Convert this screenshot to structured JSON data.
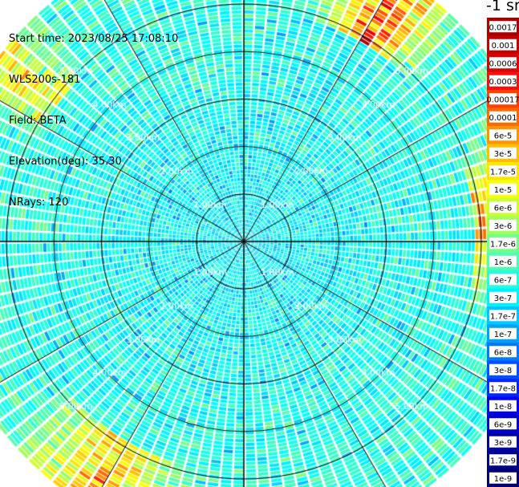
{
  "header": {
    "start_time": "Start time: 2023/08/25 17:08:10",
    "instrument": "WLS200s-181",
    "field": "Field: BETA",
    "elevation": "Elevation(deg): 35.30",
    "nrays": "NRays: 120"
  },
  "colorbar": {
    "unit": "-1 sr",
    "labels": [
      "0.0017",
      "0.001",
      "0.0006",
      "0.0003",
      "0.00017",
      "0.0001",
      "6e-5",
      "3e-5",
      "1.7e-5",
      "1e-5",
      "6e-6",
      "3e-6",
      "1.7e-6",
      "1e-6",
      "6e-7",
      "3e-7",
      "1.7e-7",
      "1e-7",
      "6e-8",
      "3e-8",
      "1.7e-8",
      "1e-8",
      "6e-9",
      "3e-9",
      "1.7e-9",
      "1e-9"
    ],
    "colors": [
      "#a80000",
      "#c40000",
      "#dc0000",
      "#f41010",
      "#ff4000",
      "#ff6a00",
      "#ff9400",
      "#ffbe00",
      "#ffe400",
      "#f4ff0a",
      "#caff34",
      "#a0ff5e",
      "#76ff88",
      "#4cffb2",
      "#22ffdc",
      "#00f0ff",
      "#00c8ff",
      "#00a0ff",
      "#0078ff",
      "#0050ff",
      "#0028ff",
      "#0000f0",
      "#0000c8",
      "#0000a8",
      "#00008a",
      "#000070"
    ]
  },
  "chart_data": {
    "type": "heatmap",
    "subtype": "polar PPI scan",
    "field": "BETA",
    "nrays": 120,
    "range_unit": "km",
    "max_range_km": 6.5,
    "range_rings_km": [
      1,
      2,
      3,
      4,
      5
    ],
    "ring_labels": [
      "1.00km",
      "2.00km",
      "3.00km",
      "4.00km",
      "5.00km"
    ],
    "spokes_every_deg": 30,
    "value_scale": "log",
    "value_range": [
      1e-09,
      0.0017
    ],
    "typical_values": {
      "background": "1e-7 to 3e-7",
      "far_range_ne_band": "1.7e-5 to 6e-5",
      "far_range_e_band": "1e-5 to 3e-5",
      "far_range_sw_band": "1e-5 to 3e-5",
      "far_range_nw_band": "6e-6 to 1.7e-5"
    }
  }
}
